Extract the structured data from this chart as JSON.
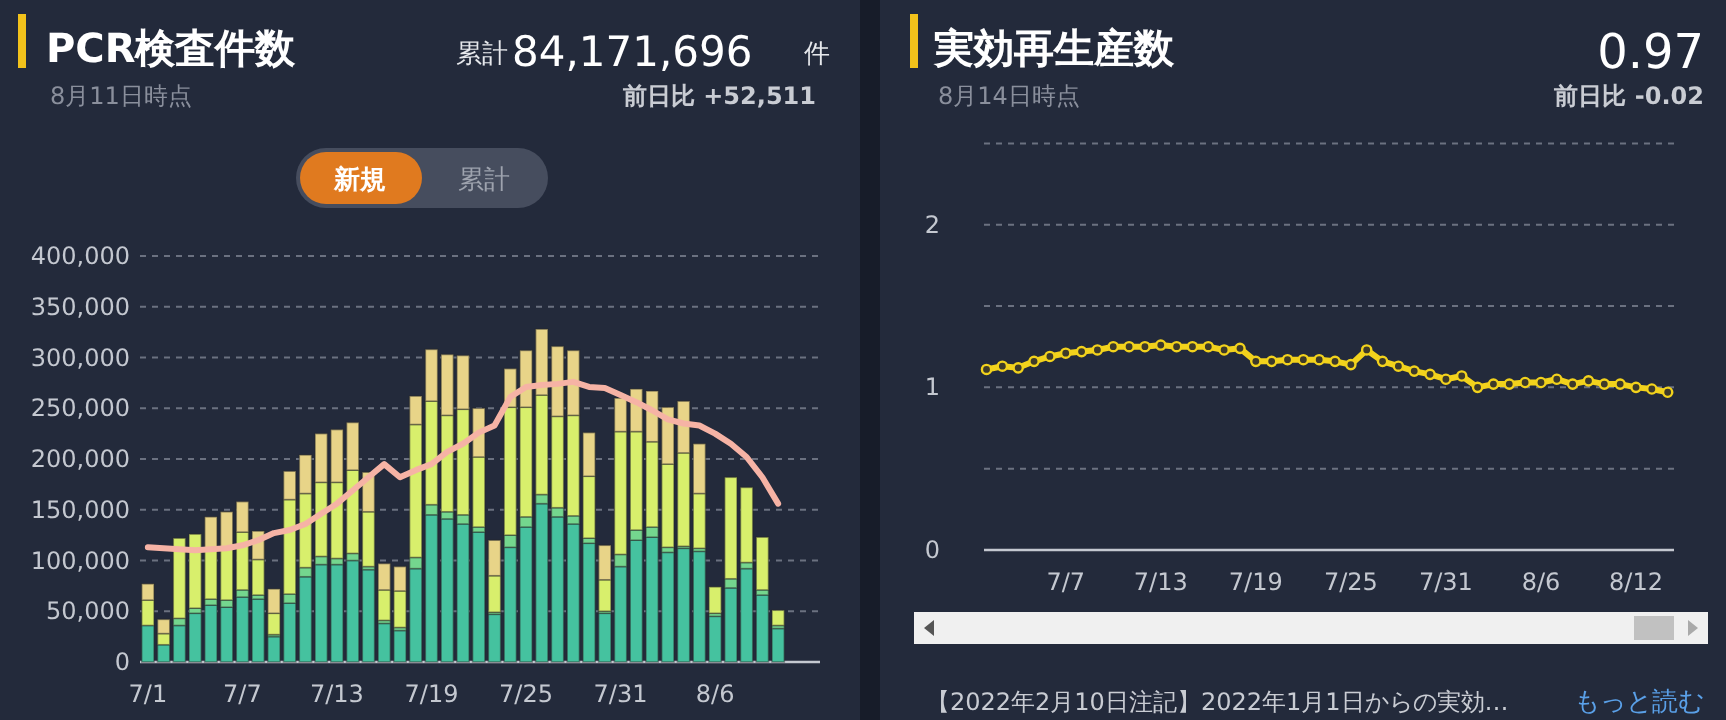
{
  "chart_data": [
    {
      "type": "bar",
      "stacked": true,
      "title": "PCR検査件数",
      "subtitle": "8月11日時点",
      "annotations": [
        "累計",
        "84,171,696",
        "件",
        "前日比 +52,511",
        "新規",
        "累計"
      ],
      "categories": [
        "7/1",
        null,
        null,
        null,
        null,
        null,
        "7/7",
        null,
        null,
        null,
        null,
        null,
        "7/13",
        null,
        null,
        null,
        null,
        null,
        "7/19",
        null,
        null,
        null,
        null,
        null,
        "7/25",
        null,
        null,
        null,
        null,
        null,
        "7/31",
        null,
        null,
        null,
        null,
        null,
        "8/6",
        null,
        null,
        null,
        null
      ],
      "series": [
        {
          "color": "#45c29f",
          "values": [
            36000,
            17000,
            36000,
            48000,
            56000,
            54000,
            64000,
            62000,
            25000,
            58000,
            84000,
            96000,
            96000,
            100000,
            91000,
            38000,
            31000,
            92000,
            145000,
            141000,
            136000,
            128000,
            47000,
            113000,
            133000,
            156000,
            143000,
            136000,
            117000,
            48000,
            94000,
            120000,
            123000,
            108000,
            112000,
            109000,
            45000,
            73000,
            92000,
            66000,
            33000
          ]
        },
        {
          "color": "#74d68e",
          "values": [
            0,
            0,
            7000,
            5000,
            6000,
            7000,
            7000,
            4000,
            2000,
            9000,
            9000,
            8000,
            6000,
            7000,
            3000,
            3000,
            3000,
            11000,
            10000,
            7000,
            9000,
            5000,
            2000,
            12000,
            10000,
            9000,
            9000,
            8000,
            5000,
            2000,
            12000,
            10000,
            10000,
            5000,
            2000,
            3000,
            3000,
            9000,
            6000,
            5000,
            3000
          ]
        },
        {
          "color": "#d8ef6c",
          "values": [
            25000,
            11000,
            79000,
            73000,
            50000,
            52000,
            57000,
            35000,
            21000,
            93000,
            73000,
            73000,
            75000,
            82000,
            54000,
            30000,
            36000,
            131000,
            102000,
            95000,
            104000,
            69000,
            36000,
            126000,
            108000,
            98000,
            90000,
            99000,
            61000,
            31000,
            121000,
            97000,
            84000,
            82000,
            92000,
            54000,
            26000,
            100000,
            74000,
            52000,
            15000
          ]
        },
        {
          "color": "#e8d488",
          "values": [
            16000,
            14000,
            0,
            0,
            31000,
            35000,
            30000,
            28000,
            24000,
            28000,
            38000,
            48000,
            52000,
            47000,
            39000,
            26000,
            24000,
            28000,
            51000,
            60000,
            53000,
            48000,
            35000,
            38000,
            56000,
            65000,
            69000,
            64000,
            43000,
            34000,
            33000,
            42000,
            50000,
            56000,
            51000,
            49000,
            0,
            0,
            0,
            0,
            0
          ]
        },
        {
          "type": "line",
          "color": "#f6b3a5",
          "values": [
            113000,
            112000,
            111000,
            110000,
            111000,
            112000,
            115000,
            120000,
            127000,
            130000,
            136000,
            146000,
            156000,
            169000,
            182000,
            195000,
            182000,
            189000,
            195000,
            207000,
            215000,
            226000,
            233000,
            261000,
            271000,
            273000,
            274000,
            276000,
            271000,
            270000,
            263000,
            256000,
            248000,
            239000,
            235000,
            233000,
            225000,
            215000,
            202000,
            182000,
            156000
          ]
        }
      ],
      "ylim": [
        0,
        400000
      ],
      "yticks": [
        0,
        {
          "value": 50000,
          "label": "50,000"
        },
        {
          "value": 100000,
          "label": "100,000"
        },
        {
          "value": 150000,
          "label": "150,000"
        },
        {
          "value": 200000,
          "label": "200,000"
        },
        {
          "value": 250000,
          "label": "250,000"
        },
        {
          "value": 300000,
          "label": "300,000"
        },
        {
          "value": 350000,
          "label": "350,000"
        },
        {
          "value": 400000,
          "label": "400,000"
        }
      ],
      "grid": "y"
    },
    {
      "type": "line",
      "title": "実効再生産数",
      "subtitle": "8月14日時点",
      "annotations": [
        "0.97",
        "前日比 -0.02",
        "【2022年2月10日注記】2022年1月1日からの実効…",
        "もっと読む"
      ],
      "categories": [
        null,
        null,
        null,
        null,
        null,
        "7/7",
        null,
        null,
        null,
        null,
        null,
        "7/13",
        null,
        null,
        null,
        null,
        null,
        "7/19",
        null,
        null,
        null,
        null,
        null,
        "7/25",
        null,
        null,
        null,
        null,
        null,
        "7/31",
        null,
        null,
        null,
        null,
        null,
        "8/6",
        null,
        null,
        null,
        null,
        null,
        "8/12",
        null,
        null
      ],
      "series": [
        {
          "color": "#f2d21c",
          "values": [
            1.11,
            1.13,
            1.12,
            1.16,
            1.19,
            1.21,
            1.22,
            1.23,
            1.25,
            1.25,
            1.25,
            1.26,
            1.25,
            1.25,
            1.25,
            1.23,
            1.24,
            1.16,
            1.16,
            1.17,
            1.17,
            1.17,
            1.16,
            1.14,
            1.23,
            1.16,
            1.13,
            1.1,
            1.08,
            1.05,
            1.07,
            1.0,
            1.02,
            1.02,
            1.03,
            1.03,
            1.05,
            1.02,
            1.04,
            1.02,
            1.02,
            1.0,
            0.99,
            0.97
          ]
        }
      ],
      "ylim": [
        0,
        2.5
      ],
      "yticks": [
        0,
        {
          "value": 0.5,
          "label": null
        },
        1,
        {
          "value": 1.5,
          "label": null
        },
        2,
        {
          "value": 2.5,
          "label": null
        }
      ],
      "grid": "y",
      "marker": "circle"
    }
  ]
}
